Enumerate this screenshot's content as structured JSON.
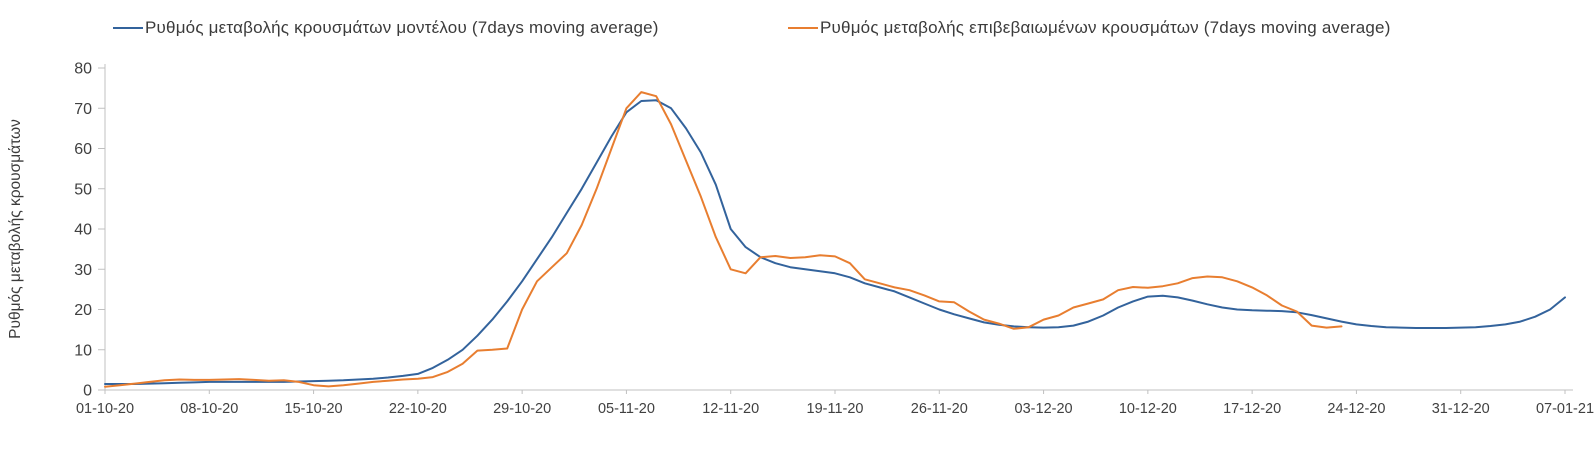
{
  "colors": {
    "model_line": "#33639c",
    "confirmed_line": "#e87e30",
    "axis": "#c0c0c0",
    "tick_text": "#404040"
  },
  "chart_data": {
    "type": "line",
    "title": "",
    "ylabel": "Ρυθμός μεταβολής κρουσμάτων",
    "xlabel": "",
    "ylim": [
      0,
      80
    ],
    "yticks": [
      0,
      10,
      20,
      30,
      40,
      50,
      60,
      70,
      80
    ],
    "grid": false,
    "legend_position": "top",
    "x_tick_interval_days": 7,
    "x_tick_labels": [
      "01-10-20",
      "08-10-20",
      "15-10-20",
      "22-10-20",
      "29-10-20",
      "05-11-20",
      "12-11-20",
      "19-11-20",
      "26-11-20",
      "03-12-20",
      "10-12-20",
      "17-12-20",
      "24-12-20",
      "31-12-20",
      "07-01-21"
    ],
    "series": [
      {
        "name": "Ρυθμός μεταβολής κρουσμάτων μοντέλου (7days moving average)",
        "color": "#33639c",
        "values": [
          1.5,
          1.5,
          1.5,
          1.6,
          1.7,
          1.8,
          1.9,
          2.0,
          2.0,
          2.0,
          2.0,
          2.0,
          2.0,
          2.1,
          2.2,
          2.3,
          2.4,
          2.6,
          2.8,
          3.1,
          3.5,
          4.0,
          5.5,
          7.5,
          10,
          13.5,
          17.5,
          22,
          27,
          32.5,
          38,
          44,
          50,
          56.5,
          63,
          69,
          71.8,
          72,
          70,
          65,
          59,
          51,
          40,
          35.5,
          33,
          31.5,
          30.5,
          30,
          29.5,
          29,
          28,
          26.5,
          25.5,
          24.5,
          23,
          21.5,
          20,
          18.8,
          17.8,
          16.8,
          16.2,
          15.8,
          15.6,
          15.5,
          15.6,
          16,
          17,
          18.5,
          20.5,
          22,
          23.2,
          23.4,
          23,
          22.2,
          21.3,
          20.5,
          20,
          19.8,
          19.7,
          19.6,
          19.3,
          18.6,
          17.8,
          17,
          16.3,
          15.9,
          15.6,
          15.5,
          15.4,
          15.4,
          15.4,
          15.5,
          15.6,
          15.9,
          16.3,
          17,
          18.2,
          20,
          23
        ]
      },
      {
        "name": "Ρυθμός μεταβολής επιβεβαιωμένων κρουσμάτων (7days moving average)",
        "color": "#e87e30",
        "values": [
          0.8,
          1.2,
          1.6,
          2.0,
          2.4,
          2.6,
          2.5,
          2.5,
          2.6,
          2.7,
          2.5,
          2.3,
          2.4,
          2.0,
          1.2,
          0.9,
          1.2,
          1.6,
          2.0,
          2.3,
          2.6,
          2.8,
          3.2,
          4.5,
          6.5,
          9.8,
          10.0,
          10.3,
          20,
          27,
          30.5,
          34,
          41,
          50,
          60,
          70,
          74,
          73,
          66,
          57,
          48,
          38,
          30,
          29,
          33,
          33.3,
          32.8,
          33,
          33.5,
          33.2,
          31.5,
          27.5,
          26.5,
          25.5,
          24.8,
          23.5,
          22,
          21.8,
          19.5,
          17.5,
          16.5,
          15.2,
          15.6,
          17.5,
          18.5,
          20.5,
          21.5,
          22.5,
          24.8,
          25.6,
          25.4,
          25.8,
          26.5,
          27.8,
          28.2,
          28.0,
          27.0,
          25.5,
          23.5,
          21.0,
          19.5,
          16.0,
          15.5,
          15.8
        ]
      }
    ]
  }
}
